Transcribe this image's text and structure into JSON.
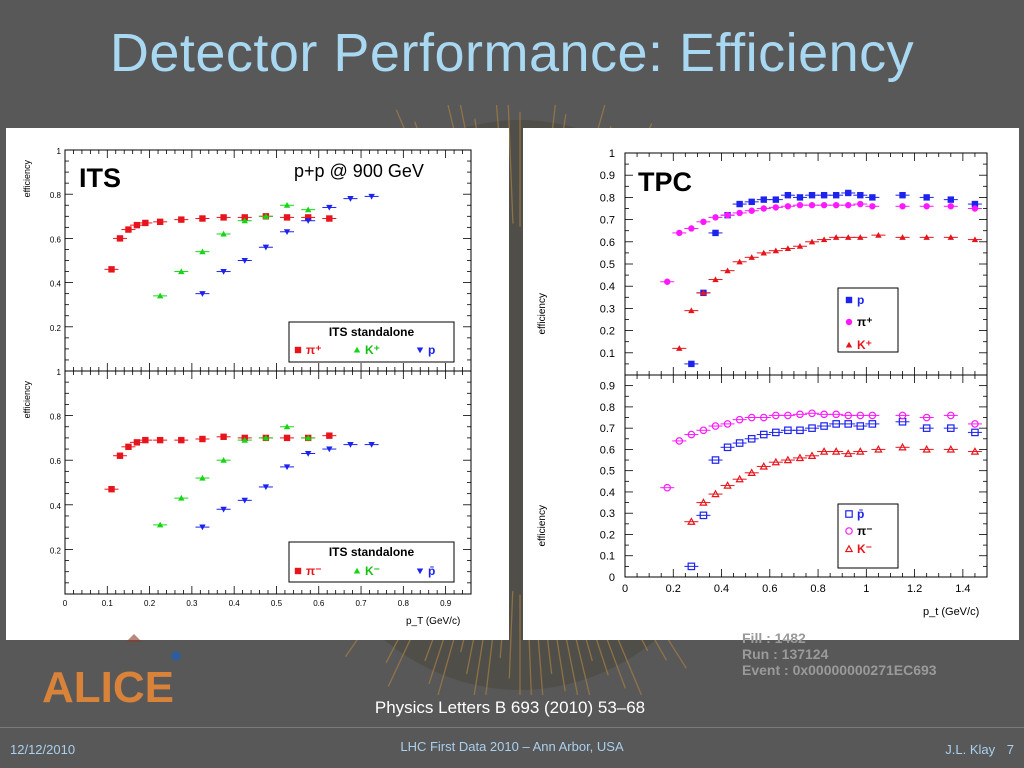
{
  "title": "Detector Performance: Efficiency",
  "its_panel": {
    "label": "ITS",
    "energy": "p+p @ 900 GeV"
  },
  "tpc_panel": {
    "label": "TPC"
  },
  "event_info": {
    "fill": "Fill : 1482",
    "run": "Run : 137124",
    "event": "Event : 0x00000000271EC693"
  },
  "logo_text": "ALICE",
  "citation": "Physics Letters B 693 (2010) 53–68",
  "footer": {
    "date": "12/12/2010",
    "center": "LHC First Data 2010 – Ann Arbor, USA",
    "author": "J.L. Klay",
    "page": "7"
  },
  "colors": {
    "red": "#e8141c",
    "green": "#15d615",
    "blue": "#1d22ee",
    "magenta": "#ff18ff",
    "title": "#a9d8f2"
  },
  "chart_data": [
    {
      "type": "scatter",
      "panel": "ITS",
      "title": "ITS standalone",
      "xlabel": "p_T (GeV/c)",
      "ylabel": "efficiency",
      "xlim": [
        0,
        0.96
      ],
      "ylim": [
        0.0,
        1.0
      ],
      "xticks": [
        "0",
        "0.1",
        "0.2",
        "0.3",
        "0.4",
        "0.5",
        "0.6",
        "0.7",
        "0.8",
        "0.9"
      ],
      "yticks": [
        "0.2",
        "0.4",
        "0.6",
        "0.8",
        "1"
      ],
      "legend": {
        "title": "ITS standalone",
        "position": "bottom-right",
        "entries": [
          "π⁺",
          "K⁺",
          "p"
        ]
      },
      "series": [
        {
          "name": "π⁺",
          "color": "#e8141c",
          "marker": "square",
          "x": [
            0.11,
            0.13,
            0.15,
            0.17,
            0.19,
            0.225,
            0.275,
            0.325,
            0.375,
            0.425,
            0.475,
            0.525,
            0.575,
            0.625
          ],
          "y": [
            0.46,
            0.6,
            0.64,
            0.66,
            0.67,
            0.675,
            0.685,
            0.69,
            0.695,
            0.695,
            0.7,
            0.695,
            0.695,
            0.69
          ]
        },
        {
          "name": "K⁺",
          "color": "#15d615",
          "marker": "triangle",
          "x": [
            0.225,
            0.275,
            0.325,
            0.375,
            0.425,
            0.475,
            0.525,
            0.575
          ],
          "y": [
            0.34,
            0.45,
            0.54,
            0.62,
            0.68,
            0.7,
            0.75,
            0.73
          ]
        },
        {
          "name": "p",
          "color": "#1d22ee",
          "marker": "triangle-down",
          "x": [
            0.325,
            0.375,
            0.425,
            0.475,
            0.525,
            0.575,
            0.625,
            0.675,
            0.725
          ],
          "y": [
            0.35,
            0.45,
            0.5,
            0.56,
            0.63,
            0.68,
            0.74,
            0.78,
            0.79
          ]
        }
      ]
    },
    {
      "type": "scatter",
      "panel": "ITS",
      "title": "ITS standalone",
      "xlabel": "p_T (GeV/c)",
      "ylabel": "efficiency",
      "xlim": [
        0,
        0.96
      ],
      "ylim": [
        0.0,
        1.0
      ],
      "xticks": [
        "0",
        "0.1",
        "0.2",
        "0.3",
        "0.4",
        "0.5",
        "0.6",
        "0.7",
        "0.8",
        "0.9"
      ],
      "yticks": [
        "0.2",
        "0.4",
        "0.6",
        "0.8",
        "1"
      ],
      "legend": {
        "title": "ITS standalone",
        "position": "bottom-right",
        "entries": [
          "π⁻",
          "K⁻",
          "p̄"
        ]
      },
      "series": [
        {
          "name": "π⁻",
          "color": "#e8141c",
          "marker": "square",
          "x": [
            0.11,
            0.13,
            0.15,
            0.17,
            0.19,
            0.225,
            0.275,
            0.325,
            0.375,
            0.425,
            0.475,
            0.525,
            0.575,
            0.625
          ],
          "y": [
            0.47,
            0.62,
            0.66,
            0.68,
            0.69,
            0.69,
            0.69,
            0.695,
            0.705,
            0.7,
            0.7,
            0.7,
            0.7,
            0.71
          ]
        },
        {
          "name": "K⁻",
          "color": "#15d615",
          "marker": "triangle",
          "x": [
            0.225,
            0.275,
            0.325,
            0.375,
            0.425,
            0.475,
            0.525,
            0.575
          ],
          "y": [
            0.31,
            0.43,
            0.52,
            0.6,
            0.69,
            0.7,
            0.75,
            0.7
          ]
        },
        {
          "name": "p̄",
          "color": "#1d22ee",
          "marker": "triangle-down",
          "x": [
            0.325,
            0.375,
            0.425,
            0.475,
            0.525,
            0.575,
            0.625,
            0.675,
            0.725
          ],
          "y": [
            0.3,
            0.38,
            0.42,
            0.48,
            0.57,
            0.63,
            0.65,
            0.67,
            0.67
          ]
        }
      ]
    },
    {
      "type": "scatter",
      "panel": "TPC",
      "xlabel": "p_t (GeV/c)",
      "ylabel": "efficiency",
      "xlim": [
        0,
        1.5
      ],
      "ylim": [
        0,
        1.0
      ],
      "yticks": [
        "0.1",
        "0.2",
        "0.3",
        "0.4",
        "0.5",
        "0.6",
        "0.7",
        "0.8",
        "0.9",
        "1"
      ],
      "legend": {
        "position": "bottom-right",
        "entries": [
          "p",
          "π⁺",
          "K⁺"
        ]
      },
      "series": [
        {
          "name": "p",
          "color": "#1d22ee",
          "marker": "square",
          "x": [
            0.275,
            0.325,
            0.375,
            0.425,
            0.475,
            0.525,
            0.575,
            0.625,
            0.675,
            0.725,
            0.775,
            0.825,
            0.875,
            0.925,
            0.975,
            1.025,
            1.15,
            1.25,
            1.35,
            1.45
          ],
          "y": [
            0.05,
            0.37,
            0.64,
            0.72,
            0.77,
            0.78,
            0.79,
            0.79,
            0.81,
            0.8,
            0.81,
            0.81,
            0.81,
            0.82,
            0.81,
            0.8,
            0.81,
            0.8,
            0.79,
            0.77
          ]
        },
        {
          "name": "π⁺",
          "color": "#ff18ff",
          "marker": "circle",
          "x": [
            0.175,
            0.225,
            0.275,
            0.325,
            0.375,
            0.425,
            0.475,
            0.525,
            0.575,
            0.625,
            0.675,
            0.725,
            0.775,
            0.825,
            0.875,
            0.925,
            0.975,
            1.025,
            1.15,
            1.25,
            1.35,
            1.45
          ],
          "y": [
            0.42,
            0.64,
            0.66,
            0.69,
            0.71,
            0.72,
            0.73,
            0.74,
            0.75,
            0.755,
            0.76,
            0.765,
            0.765,
            0.765,
            0.765,
            0.765,
            0.77,
            0.76,
            0.76,
            0.76,
            0.76,
            0.75
          ]
        },
        {
          "name": "K⁺",
          "color": "#e8141c",
          "marker": "triangle",
          "x": [
            0.225,
            0.275,
            0.325,
            0.375,
            0.425,
            0.475,
            0.525,
            0.575,
            0.625,
            0.675,
            0.725,
            0.775,
            0.825,
            0.875,
            0.925,
            0.975,
            1.05,
            1.15,
            1.25,
            1.35,
            1.45
          ],
          "y": [
            0.12,
            0.29,
            0.37,
            0.43,
            0.47,
            0.51,
            0.53,
            0.55,
            0.56,
            0.57,
            0.58,
            0.6,
            0.61,
            0.62,
            0.62,
            0.62,
            0.63,
            0.62,
            0.62,
            0.62,
            0.61
          ]
        }
      ]
    },
    {
      "type": "scatter",
      "panel": "TPC",
      "xlabel": "p_t (GeV/c)",
      "ylabel": "efficiency",
      "xlim": [
        0,
        1.5
      ],
      "ylim": [
        0,
        0.95
      ],
      "xticks": [
        "0",
        "0.2",
        "0.4",
        "0.6",
        "0.8",
        "1",
        "1.2",
        "1.4"
      ],
      "yticks": [
        "0",
        "0.1",
        "0.2",
        "0.3",
        "0.4",
        "0.5",
        "0.6",
        "0.7",
        "0.8",
        "0.9"
      ],
      "legend": {
        "position": "bottom-right",
        "entries": [
          "p̄",
          "π⁻",
          "K⁻"
        ]
      },
      "series": [
        {
          "name": "p̄",
          "color": "#1d22ee",
          "marker": "open-square",
          "x": [
            0.275,
            0.325,
            0.375,
            0.425,
            0.475,
            0.525,
            0.575,
            0.625,
            0.675,
            0.725,
            0.775,
            0.825,
            0.875,
            0.925,
            0.975,
            1.025,
            1.15,
            1.25,
            1.35,
            1.45
          ],
          "y": [
            0.05,
            0.29,
            0.55,
            0.61,
            0.63,
            0.65,
            0.67,
            0.68,
            0.69,
            0.69,
            0.7,
            0.71,
            0.72,
            0.72,
            0.71,
            0.72,
            0.73,
            0.7,
            0.7,
            0.68
          ]
        },
        {
          "name": "π⁻",
          "color": "#ff18ff",
          "marker": "open-circle",
          "x": [
            0.175,
            0.225,
            0.275,
            0.325,
            0.375,
            0.425,
            0.475,
            0.525,
            0.575,
            0.625,
            0.675,
            0.725,
            0.775,
            0.825,
            0.875,
            0.925,
            0.975,
            1.025,
            1.15,
            1.25,
            1.35,
            1.45
          ],
          "y": [
            0.42,
            0.64,
            0.67,
            0.69,
            0.71,
            0.72,
            0.74,
            0.75,
            0.75,
            0.76,
            0.76,
            0.765,
            0.77,
            0.765,
            0.765,
            0.76,
            0.76,
            0.76,
            0.76,
            0.75,
            0.76,
            0.72
          ]
        },
        {
          "name": "K⁻",
          "color": "#e8141c",
          "marker": "open-triangle",
          "x": [
            0.275,
            0.325,
            0.375,
            0.425,
            0.475,
            0.525,
            0.575,
            0.625,
            0.675,
            0.725,
            0.775,
            0.825,
            0.875,
            0.925,
            0.975,
            1.05,
            1.15,
            1.25,
            1.35,
            1.45
          ],
          "y": [
            0.26,
            0.35,
            0.39,
            0.43,
            0.46,
            0.49,
            0.52,
            0.54,
            0.55,
            0.56,
            0.57,
            0.59,
            0.59,
            0.58,
            0.59,
            0.6,
            0.61,
            0.6,
            0.6,
            0.59
          ]
        }
      ]
    }
  ]
}
